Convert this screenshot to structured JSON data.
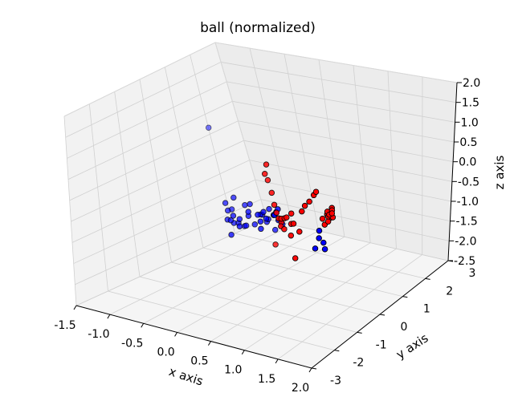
{
  "chart_data": {
    "type": "scatter",
    "title": "ball (normalized)",
    "xlabel": "x axis",
    "ylabel": "y axis",
    "zlabel": "z axis",
    "xlim": [
      -1.5,
      2.0
    ],
    "ylim": [
      -3,
      3
    ],
    "zlim": [
      -2.5,
      2.0
    ],
    "x_ticks": [
      "-1.5",
      "-1.0",
      "-0.5",
      "0.0",
      "0.5",
      "1.0",
      "1.5",
      "2.0"
    ],
    "y_ticks": [
      "-3",
      "-2",
      "-1",
      "0",
      "1",
      "2",
      "3"
    ],
    "z_ticks": [
      "-2.5",
      "-2.0",
      "-1.5",
      "-1.0",
      "-0.5",
      "0.0",
      "0.5",
      "1.0",
      "1.5",
      "2.0"
    ],
    "grid": true,
    "series": [
      {
        "color": "#0000ff",
        "points": [
          [
            -1.2,
            1.4,
            0.45
          ],
          [
            -0.6,
            0.3,
            -0.85
          ],
          [
            -0.55,
            0.25,
            -1.0
          ],
          [
            -0.58,
            0.45,
            -1.05
          ],
          [
            -0.5,
            0.1,
            -1.15
          ],
          [
            -0.48,
            0.35,
            -0.7
          ],
          [
            -0.45,
            0.2,
            -1.25
          ],
          [
            -0.4,
            0.0,
            -1.1
          ],
          [
            -0.38,
            0.5,
            -0.9
          ],
          [
            -0.35,
            0.15,
            -1.2
          ],
          [
            -0.33,
            -0.05,
            -0.95
          ],
          [
            -0.3,
            0.3,
            -1.3
          ],
          [
            -0.28,
            0.05,
            -1.05
          ],
          [
            -0.25,
            0.4,
            -0.8
          ],
          [
            -0.22,
            -0.1,
            -1.15
          ],
          [
            -0.2,
            0.2,
            -1.0
          ],
          [
            -0.18,
            0.35,
            -1.25
          ],
          [
            -0.45,
            0.55,
            -1.45
          ],
          [
            -0.32,
            -0.2,
            -1.35
          ],
          [
            -0.15,
            0.1,
            -0.85
          ],
          [
            -0.02,
            0.3,
            -0.95
          ],
          [
            0.0,
            0.2,
            -0.9
          ],
          [
            0.02,
            0.05,
            -0.85
          ],
          [
            0.05,
            0.35,
            -1.05
          ],
          [
            0.07,
            0.15,
            -0.8
          ],
          [
            0.1,
            -0.05,
            -0.95
          ],
          [
            0.12,
            0.25,
            -0.75
          ],
          [
            0.15,
            0.05,
            -0.9
          ],
          [
            0.0,
            0.4,
            -1.15
          ],
          [
            0.08,
            0.5,
            -1.35
          ],
          [
            0.12,
            -0.1,
            -1.1
          ],
          [
            0.25,
            0.1,
            -0.8
          ],
          [
            0.3,
            0.0,
            -0.75
          ],
          [
            0.35,
            -0.1,
            -0.7
          ],
          [
            0.28,
            0.2,
            -0.95
          ],
          [
            0.4,
            -0.15,
            -0.6
          ],
          [
            0.45,
            -0.2,
            -0.5
          ],
          [
            0.32,
            0.25,
            -1.05
          ],
          [
            1.55,
            -1.45,
            -0.25
          ],
          [
            1.6,
            -1.6,
            -0.35
          ],
          [
            1.65,
            -1.55,
            -0.45
          ],
          [
            1.58,
            -1.7,
            -0.55
          ],
          [
            1.62,
            -1.4,
            -0.65
          ]
        ]
      },
      {
        "color": "#ff0000",
        "points": [
          [
            0.3,
            -0.25,
            0.3
          ],
          [
            0.35,
            -0.3,
            0.55
          ],
          [
            0.28,
            -0.1,
            0.1
          ],
          [
            0.45,
            -0.4,
            -0.05
          ],
          [
            0.25,
            0.1,
            -1.5
          ],
          [
            0.55,
            -0.5,
            -0.45
          ],
          [
            0.6,
            -0.55,
            -0.55
          ],
          [
            0.62,
            -0.5,
            -0.65
          ],
          [
            0.65,
            -0.6,
            -0.7
          ],
          [
            0.58,
            -0.45,
            -0.6
          ],
          [
            0.68,
            -0.65,
            -0.5
          ],
          [
            0.7,
            -0.6,
            -0.75
          ],
          [
            0.75,
            -0.7,
            -0.45
          ],
          [
            0.5,
            -0.45,
            -0.3
          ],
          [
            0.8,
            -0.75,
            -0.4
          ],
          [
            0.85,
            -0.7,
            -0.55
          ],
          [
            0.95,
            -0.95,
            -0.2
          ],
          [
            1.0,
            -1.0,
            -0.4
          ],
          [
            1.05,
            -0.9,
            -0.6
          ],
          [
            0.9,
            -0.85,
            -0.75
          ],
          [
            1.0,
            -0.95,
            -1.2
          ],
          [
            1.2,
            -1.2,
            0.0
          ],
          [
            1.3,
            -1.35,
            0.2
          ],
          [
            1.4,
            -1.45,
            0.35
          ],
          [
            1.5,
            -1.55,
            0.55
          ],
          [
            1.55,
            -1.6,
            0.65
          ],
          [
            1.7,
            -1.75,
            0.15
          ],
          [
            1.75,
            -1.8,
            0.05
          ],
          [
            1.8,
            -1.85,
            0.3
          ],
          [
            1.82,
            -1.9,
            0.38
          ],
          [
            1.85,
            -1.95,
            0.3
          ],
          [
            1.88,
            -1.88,
            0.42
          ],
          [
            1.83,
            -1.8,
            0.22
          ],
          [
            1.87,
            -1.97,
            0.35
          ],
          [
            1.9,
            -1.9,
            0.28
          ],
          [
            1.86,
            -1.83,
            0.45
          ],
          [
            1.92,
            -2.0,
            0.4
          ],
          [
            1.84,
            -1.92,
            0.18
          ]
        ]
      }
    ]
  }
}
